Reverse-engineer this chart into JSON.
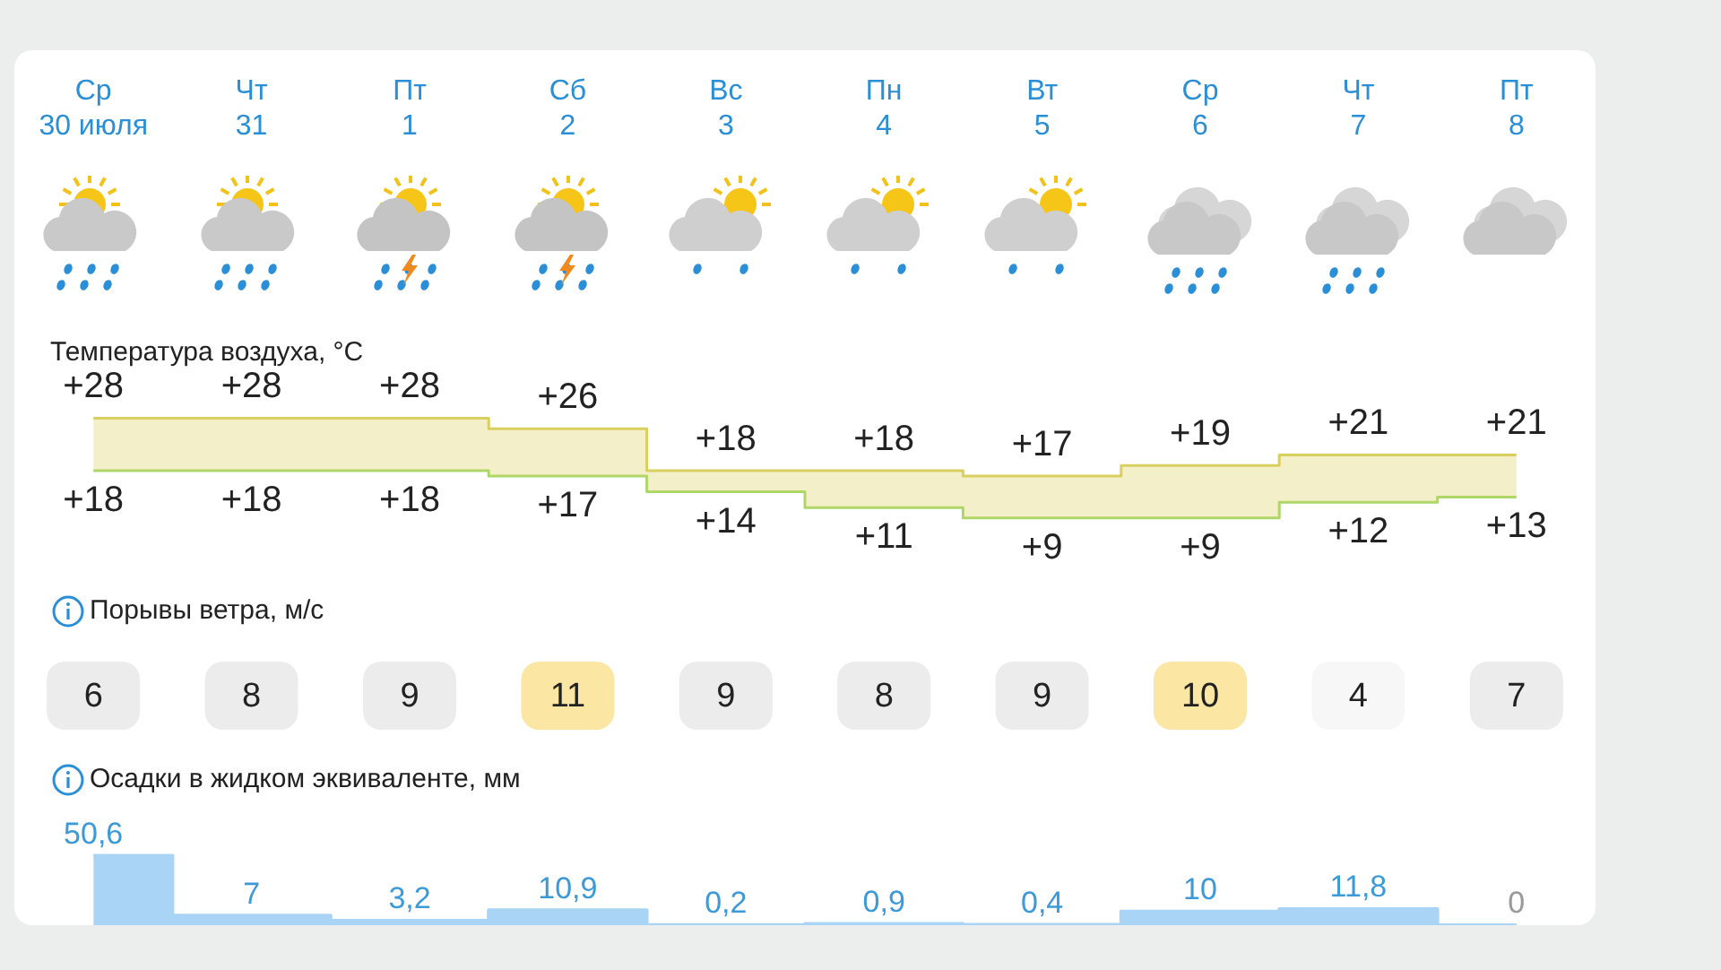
{
  "chart_data": [
    {
      "type": "step",
      "title": "Температура воздуха, °C",
      "categories": [
        "Ср 30 июля",
        "Чт 31",
        "Пт 1",
        "Сб 2",
        "Вс 3",
        "Пн 4",
        "Вт 5",
        "Ср 6",
        "Чт 7",
        "Пт 8"
      ],
      "series": [
        {
          "color": "#d9cf5e",
          "values": [
            28,
            28,
            28,
            26,
            18,
            18,
            17,
            19,
            21,
            21
          ],
          "value_labels": [
            "+28",
            "+28",
            "+28",
            "+26",
            "+18",
            "+18",
            "+17",
            "+19",
            "+21",
            "+21"
          ]
        },
        {
          "color": "#a6d96a",
          "values": [
            18,
            18,
            18,
            17,
            14,
            11,
            9,
            9,
            12,
            13
          ],
          "value_labels": [
            "+18",
            "+18",
            "+18",
            "+17",
            "+14",
            "+11",
            "+9",
            "+9",
            "+12",
            "+13"
          ]
        }
      ],
      "tick_labels": "x"
    },
    {
      "type": "other",
      "title": "Порывы ветра, м/с",
      "categories": [
        null,
        null,
        null,
        null,
        null,
        null,
        null,
        null,
        null,
        null
      ],
      "values": [
        6,
        8,
        9,
        11,
        9,
        8,
        9,
        10,
        4,
        7
      ],
      "colors": [
        "#ececec",
        "#ececec",
        "#ececec",
        "#fbe6a4",
        "#ececec",
        "#ececec",
        "#ececec",
        "#fbe6a4",
        "#f7f7f7",
        "#ececec"
      ],
      "data_labels": true
    },
    {
      "type": "area",
      "title": "Осадки в жидком эквиваленте, мм",
      "categories": [
        null,
        null,
        null,
        null,
        null,
        null,
        null,
        null,
        null,
        null
      ],
      "values": [
        50.6,
        7,
        3.2,
        10.9,
        0.2,
        0.9,
        0.4,
        10,
        11.8,
        0
      ],
      "value_labels": [
        "50,6",
        "7",
        "3,2",
        "10,9",
        "0,2",
        "0,9",
        "0,4",
        "10",
        "11,8",
        "0"
      ],
      "color": "#a9d4f5",
      "tick_labels": false
    }
  ]
}
